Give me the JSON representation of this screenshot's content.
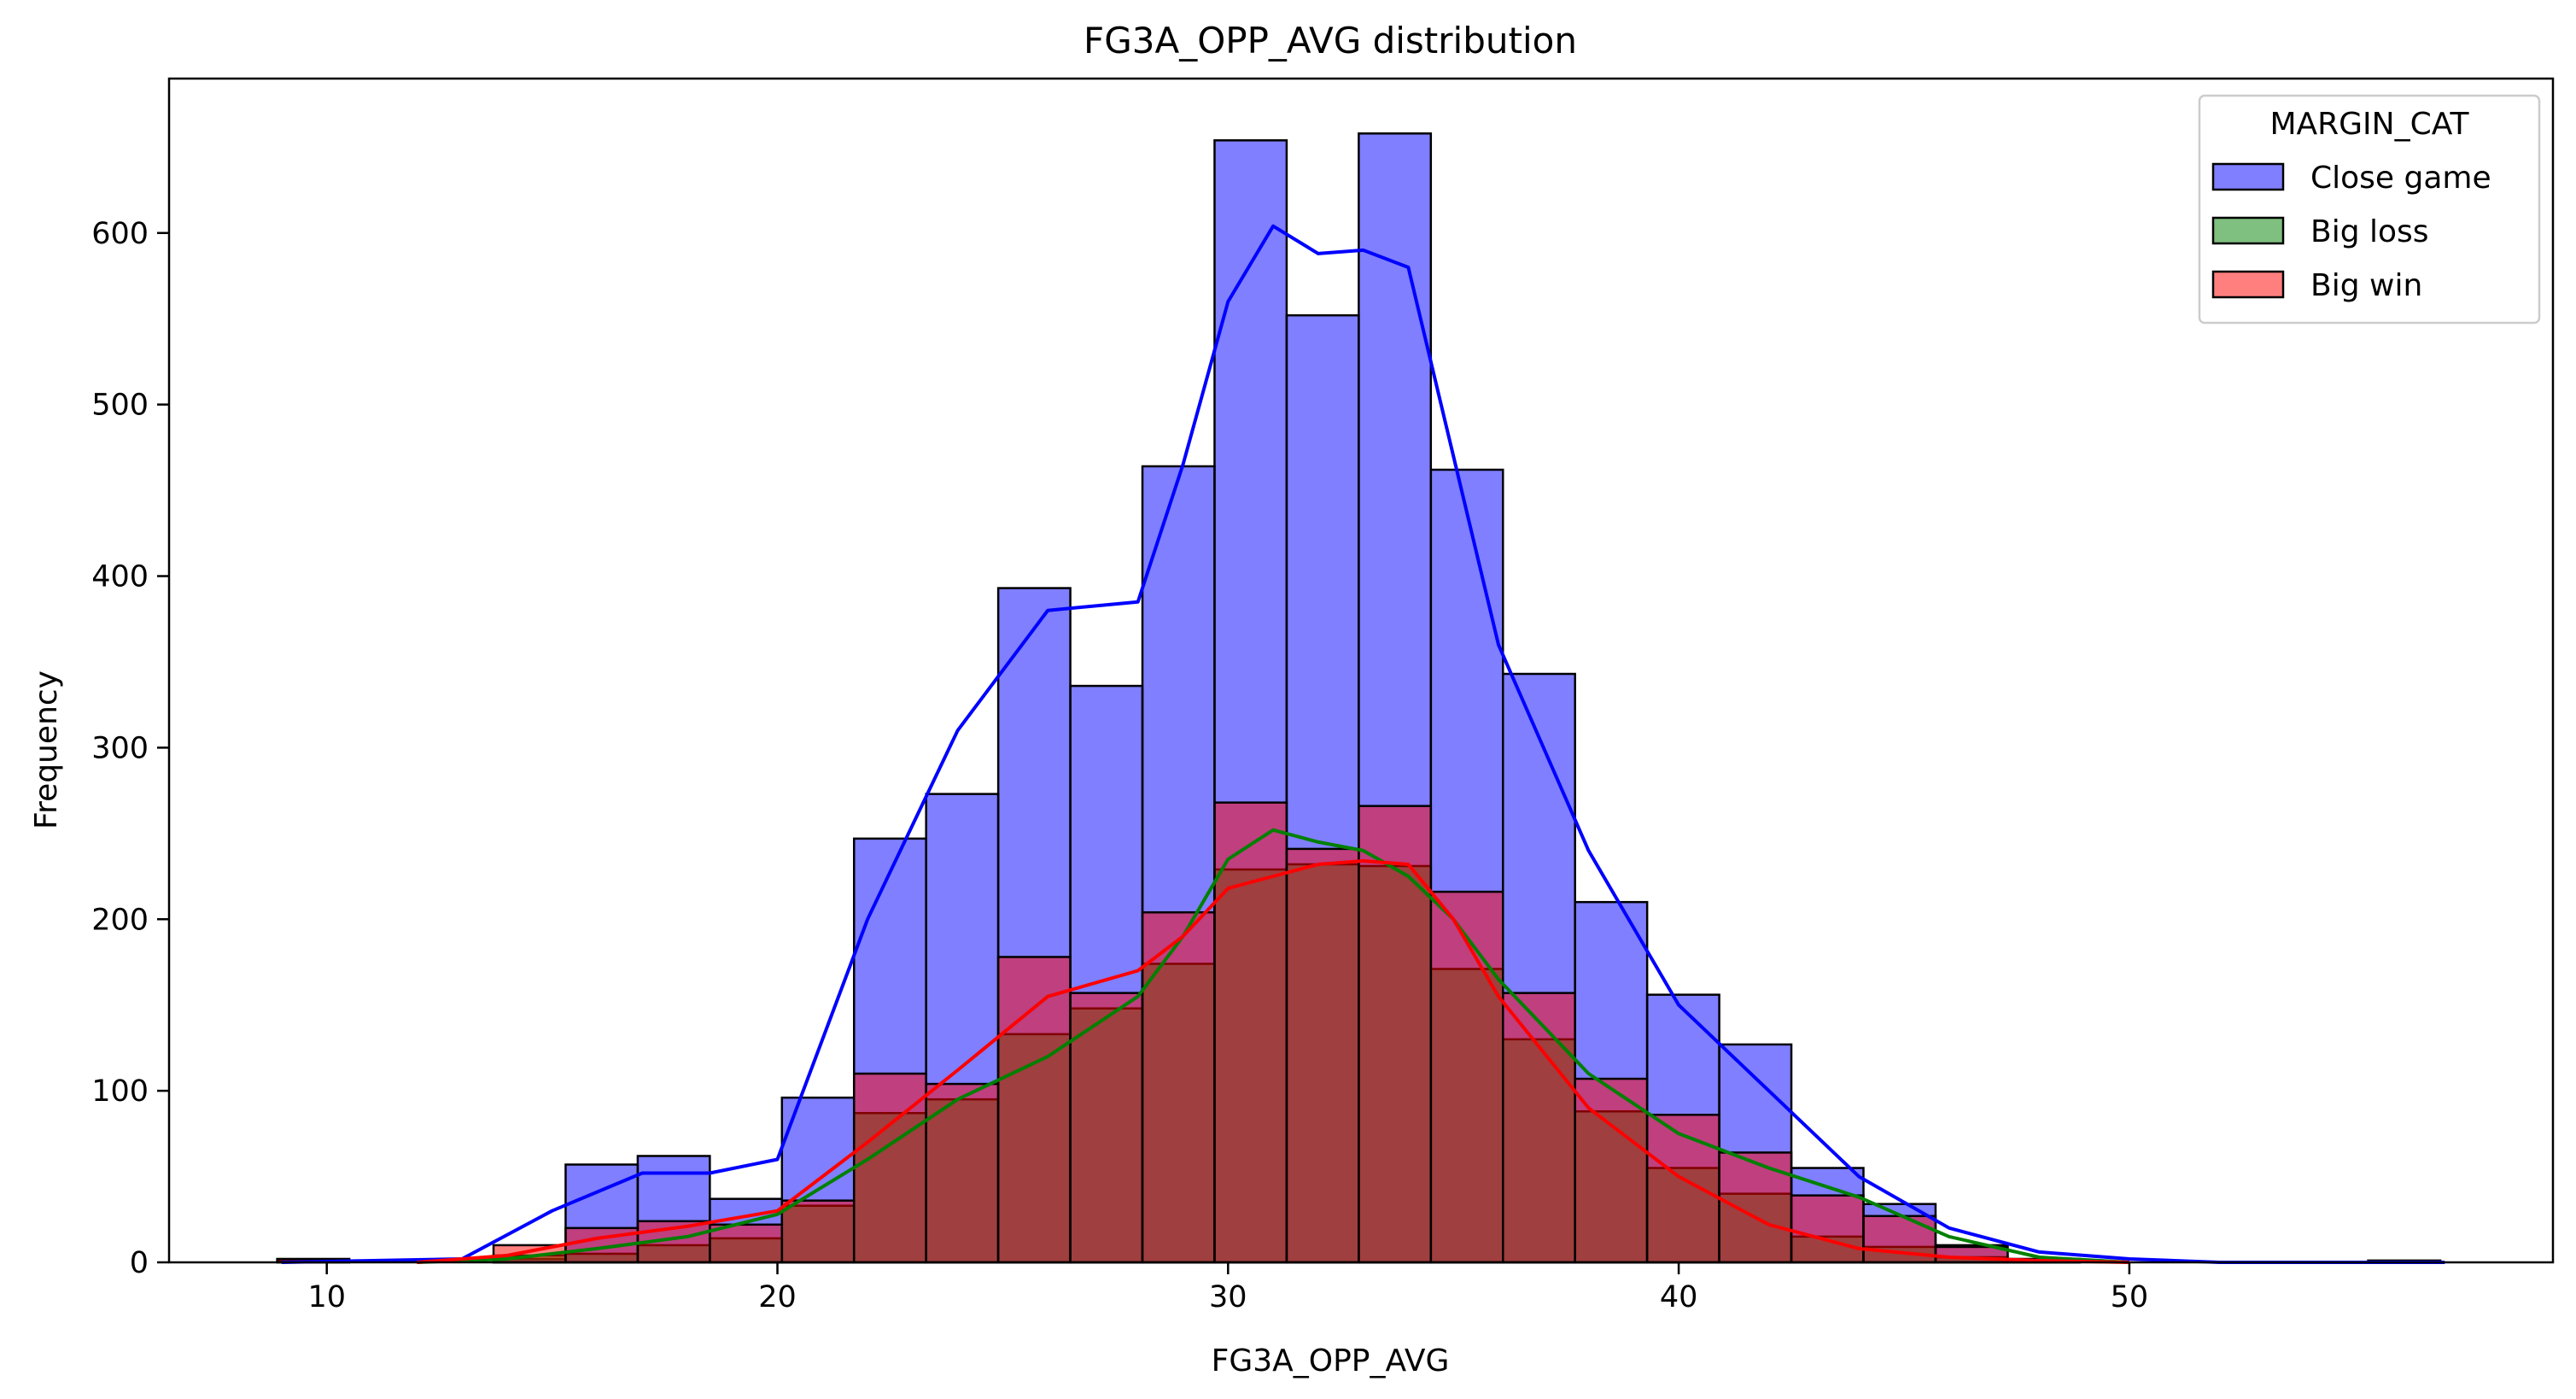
{
  "chart_data": {
    "type": "histogram",
    "title": "FG3A_OPP_AVG distribution",
    "xlabel": "FG3A_OPP_AVG",
    "ylabel": "Frequency",
    "xlim": [
      6.5,
      59.4
    ],
    "ylim": [
      0,
      690
    ],
    "xticks": [
      10,
      20,
      30,
      40,
      50
    ],
    "yticks": [
      0,
      100,
      200,
      300,
      400,
      500,
      600
    ],
    "bin_edges": [
      8.9,
      10.5,
      12.1,
      13.7,
      15.3,
      16.9,
      18.5,
      20.1,
      21.7,
      23.3,
      24.9,
      26.5,
      28.1,
      29.7,
      31.3,
      32.9,
      34.5,
      36.1,
      37.7,
      39.3,
      40.9,
      42.5,
      44.1,
      45.7,
      47.3,
      48.9,
      50.5,
      52.1,
      53.7,
      55.3,
      56.9
    ],
    "legend": {
      "title": "MARGIN_CAT",
      "position": "upper-right"
    },
    "series": [
      {
        "name": "Close game",
        "color": "#0000ff",
        "counts": [
          1,
          0,
          0,
          2,
          57,
          62,
          37,
          96,
          247,
          273,
          393,
          336,
          464,
          654,
          552,
          658,
          462,
          343,
          210,
          156,
          127,
          55,
          34,
          10,
          2,
          0,
          0,
          0,
          0,
          1
        ],
        "kde_x": [
          9,
          11,
          13,
          15,
          17,
          18.5,
          20,
          22,
          24,
          26,
          28,
          29,
          30,
          31,
          32,
          33,
          34,
          35,
          36,
          38,
          40,
          42,
          44,
          46,
          48,
          50,
          52,
          57
        ],
        "kde_y": [
          0,
          1,
          2,
          30,
          52,
          52,
          60,
          200,
          310,
          380,
          385,
          465,
          560,
          604,
          588,
          590,
          580,
          470,
          360,
          240,
          150,
          100,
          50,
          20,
          6,
          2,
          0,
          0
        ]
      },
      {
        "name": "Big loss",
        "color": "#008000",
        "counts": [
          0,
          0,
          0,
          4,
          5,
          10,
          14,
          33,
          87,
          95,
          133,
          148,
          174,
          229,
          232,
          231,
          171,
          130,
          88,
          55,
          40,
          15,
          9,
          3,
          1,
          0,
          0,
          0,
          0,
          0
        ],
        "kde_x": [
          12,
          14,
          16,
          18,
          20,
          22,
          24,
          26,
          28,
          29,
          30,
          31,
          32,
          33,
          34,
          35,
          36,
          38,
          40,
          42,
          44,
          46,
          48,
          50
        ],
        "kde_y": [
          0,
          2,
          8,
          15,
          28,
          60,
          95,
          120,
          155,
          190,
          235,
          252,
          245,
          240,
          225,
          200,
          165,
          110,
          75,
          55,
          38,
          15,
          3,
          0
        ]
      },
      {
        "name": "Big win",
        "color": "#ff0000",
        "counts": [
          2,
          0,
          0,
          10,
          20,
          24,
          22,
          36,
          110,
          104,
          178,
          157,
          204,
          268,
          241,
          266,
          216,
          157,
          107,
          86,
          64,
          39,
          27,
          9,
          1,
          0,
          0,
          0,
          0,
          1
        ],
        "kde_x": [
          12,
          14,
          16,
          18,
          20,
          22,
          24,
          26,
          28,
          29,
          30,
          31,
          32,
          33,
          34,
          35,
          36,
          38,
          40,
          42,
          44,
          46,
          48,
          50
        ],
        "kde_y": [
          0,
          4,
          14,
          21,
          30,
          70,
          112,
          155,
          170,
          190,
          218,
          225,
          232,
          234,
          232,
          200,
          155,
          90,
          50,
          22,
          8,
          3,
          1,
          0
        ]
      }
    ]
  }
}
